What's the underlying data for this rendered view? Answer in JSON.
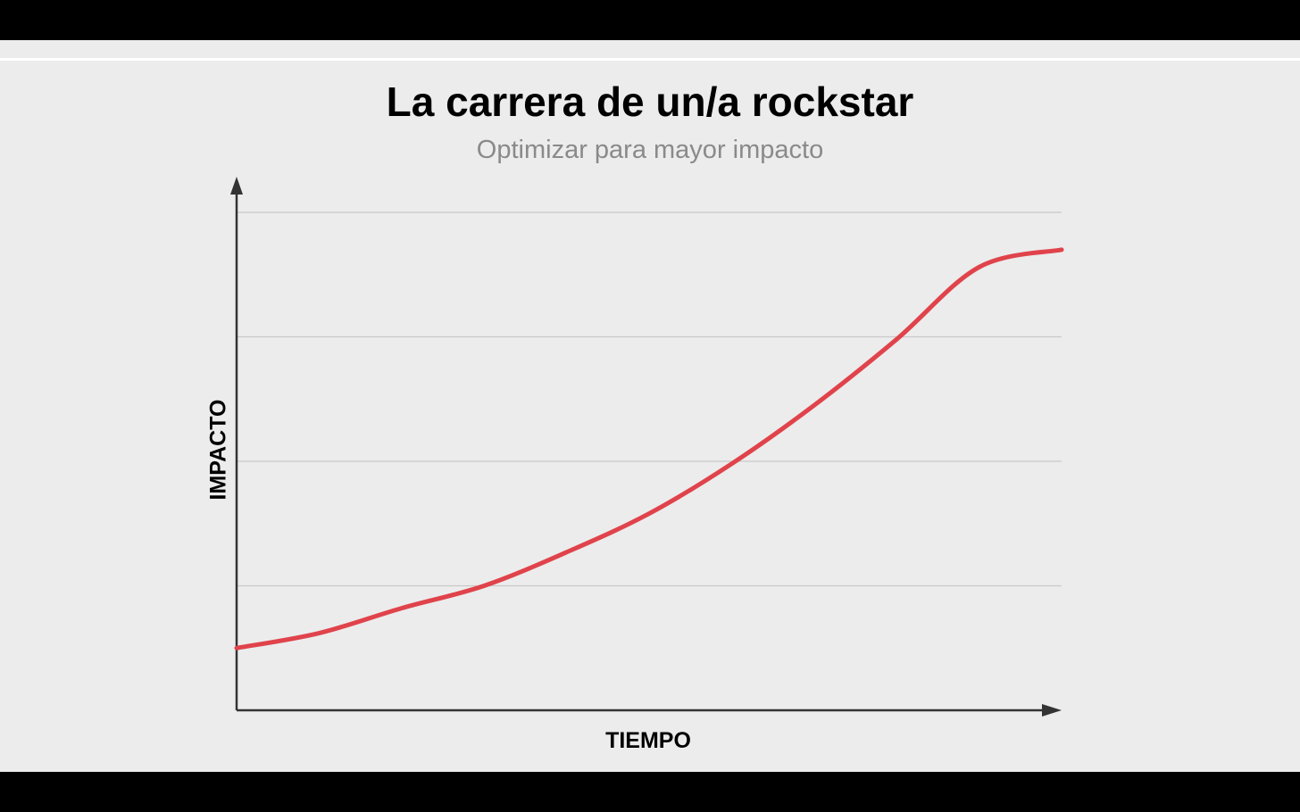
{
  "colors": {
    "background": "#ececec",
    "frame": "#000000",
    "title": "#000000",
    "subtitle": "#8a8a8a",
    "line": "#e0434b",
    "grid": "#c8c8c8",
    "axis": "#333333"
  },
  "chart_data": {
    "type": "line",
    "title": "La carrera de un/a rockstar",
    "subtitle": "Optimizar para mayor impacto",
    "xlabel": "TIEMPO",
    "ylabel": "IMPACTO",
    "xlim": [
      0,
      10
    ],
    "ylim": [
      0,
      4
    ],
    "grid": true,
    "gridlines_y": [
      1,
      2,
      3,
      4
    ],
    "ticks_visible": false,
    "series": [
      {
        "x": [
          0,
          1,
          2,
          3,
          4,
          5,
          6,
          7,
          8,
          9,
          10
        ],
        "values": [
          0.5,
          0.62,
          0.82,
          1.0,
          1.27,
          1.58,
          1.98,
          2.45,
          2.98,
          3.56,
          3.7
        ]
      }
    ]
  }
}
